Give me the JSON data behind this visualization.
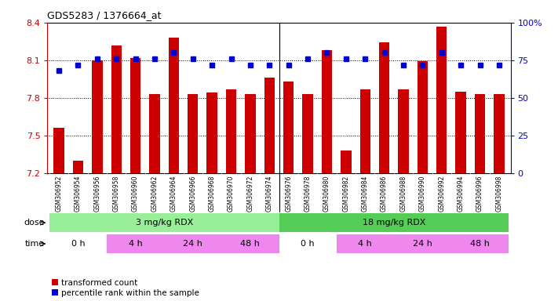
{
  "title": "GDS5283 / 1376664_at",
  "samples": [
    "GSM306952",
    "GSM306954",
    "GSM306956",
    "GSM306958",
    "GSM306960",
    "GSM306962",
    "GSM306964",
    "GSM306966",
    "GSM306968",
    "GSM306970",
    "GSM306972",
    "GSM306974",
    "GSM306976",
    "GSM306978",
    "GSM306980",
    "GSM306982",
    "GSM306984",
    "GSM306986",
    "GSM306988",
    "GSM306990",
    "GSM306992",
    "GSM306994",
    "GSM306996",
    "GSM306998"
  ],
  "bar_values": [
    7.56,
    7.3,
    8.1,
    8.22,
    8.12,
    7.83,
    8.28,
    7.83,
    7.84,
    7.87,
    7.83,
    7.96,
    7.93,
    7.83,
    8.18,
    7.38,
    7.87,
    8.24,
    7.87,
    8.09,
    8.37,
    7.85,
    7.83,
    7.83
  ],
  "percentile_values": [
    68,
    72,
    76,
    76,
    76,
    76,
    80,
    76,
    72,
    76,
    72,
    72,
    72,
    76,
    80,
    76,
    76,
    80,
    72,
    72,
    80,
    72,
    72,
    72
  ],
  "ylim_left": [
    7.2,
    8.4
  ],
  "ylim_right": [
    0,
    100
  ],
  "yticks_left": [
    7.2,
    7.5,
    7.8,
    8.1,
    8.4
  ],
  "yticks_right": [
    0,
    25,
    50,
    75,
    100
  ],
  "bar_color": "#CC0000",
  "dot_color": "#0000CC",
  "background_color": "#FFFFFF",
  "dose_labels": [
    {
      "text": "3 mg/kg RDX",
      "start": 0,
      "end": 12,
      "color": "#99EE99"
    },
    {
      "text": "18 mg/kg RDX",
      "start": 12,
      "end": 24,
      "color": "#55CC55"
    }
  ],
  "time_groups": [
    {
      "text": "0 h",
      "start": 0,
      "end": 3,
      "color": "#FFFFFF"
    },
    {
      "text": "4 h",
      "start": 3,
      "end": 6,
      "color": "#EE88EE"
    },
    {
      "text": "24 h",
      "start": 6,
      "end": 9,
      "color": "#EE88EE"
    },
    {
      "text": "48 h",
      "start": 9,
      "end": 12,
      "color": "#EE88EE"
    },
    {
      "text": "0 h",
      "start": 12,
      "end": 15,
      "color": "#FFFFFF"
    },
    {
      "text": "4 h",
      "start": 15,
      "end": 18,
      "color": "#EE88EE"
    },
    {
      "text": "24 h",
      "start": 18,
      "end": 21,
      "color": "#EE88EE"
    },
    {
      "text": "48 h",
      "start": 21,
      "end": 24,
      "color": "#EE88EE"
    }
  ],
  "legend_items": [
    {
      "label": "transformed count",
      "color": "#CC0000"
    },
    {
      "label": "percentile rank within the sample",
      "color": "#0000CC"
    }
  ],
  "xtick_bg_color": "#CCCCCC"
}
